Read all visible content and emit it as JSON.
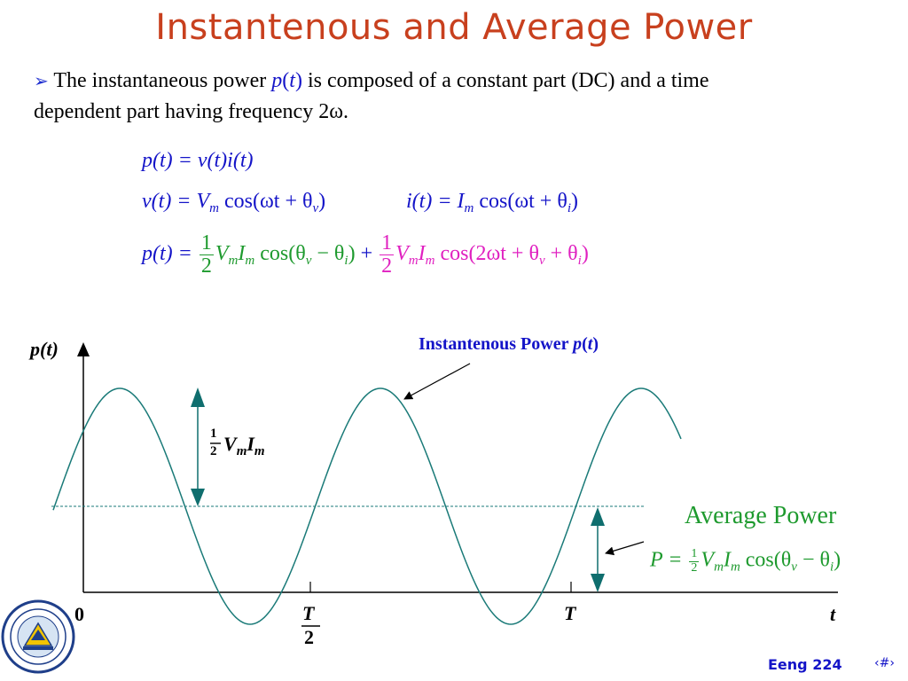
{
  "title": "Instantenous and Average Power",
  "bullet": {
    "text_before": "The instantaneous power ",
    "p_sym": "p",
    "p_arg": "t",
    "text_after": " is composed of a constant part (DC) and a time",
    "line2": "dependent part having frequency 2ω."
  },
  "equations": {
    "eq1": "p(t) = v(t)i(t)",
    "eq2a": "v(t) = V",
    "eq2a_sub": "m",
    "eq2a_rest": " cos(ωt + θ",
    "eq2a_sub2": "v",
    "eq2a_end": ")",
    "eq2b": "i(t) = I",
    "eq2b_sub": "m",
    "eq2b_rest": " cos(ωt + θ",
    "eq2b_sub2": "i",
    "eq2b_end": ")",
    "eq3_left": "p(t) =",
    "frac_num": "1",
    "frac_den": "2",
    "eq3_green": "V",
    "eq3_green_sub1": "m",
    "eq3_green_mid": "I",
    "eq3_green_sub2": "m",
    "eq3_green_cos": " cos(θ",
    "eq3_green_sub3": "v",
    "eq3_green_minus": " − θ",
    "eq3_green_sub4": "i",
    "eq3_green_end": ")",
    "plus": " + ",
    "eq3_pink": "V",
    "eq3_pink_sub1": "m",
    "eq3_pink_mid": "I",
    "eq3_pink_sub2": "m",
    "eq3_pink_cos": " cos(2ωt + θ",
    "eq3_pink_sub3": "v",
    "eq3_pink_plus": " + θ",
    "eq3_pink_sub4": "i",
    "eq3_pink_end": ")"
  },
  "plot": {
    "y_axis_label": "p(t)",
    "x_axis_label": "t",
    "origin_label": "0",
    "tick_half_num": "T",
    "tick_half_den": "2",
    "tick_full": "T",
    "amp_frac_num": "1",
    "amp_frac_den": "2",
    "amp_V": "V",
    "amp_sub1": "m",
    "amp_I": "I",
    "amp_sub2": "m",
    "inst_label": "Instantenous Power ",
    "inst_sym": "p",
    "inst_arg": "t",
    "avg_label": "Average Power",
    "avg_P": "P = ",
    "avg_V": "V",
    "avg_sub1": "m",
    "avg_I": "I",
    "avg_sub2": "m",
    "avg_cos": " cos(θ",
    "avg_sub3": "v",
    "avg_minus": " − θ",
    "avg_sub4": "i",
    "avg_end": ")",
    "curve_color": "#1a7a78",
    "arrow_color": "#0f6e6e"
  },
  "footer": {
    "course": "Eeng 224",
    "page": "‹#›"
  },
  "logo": {
    "name": "emu-university-seal"
  }
}
